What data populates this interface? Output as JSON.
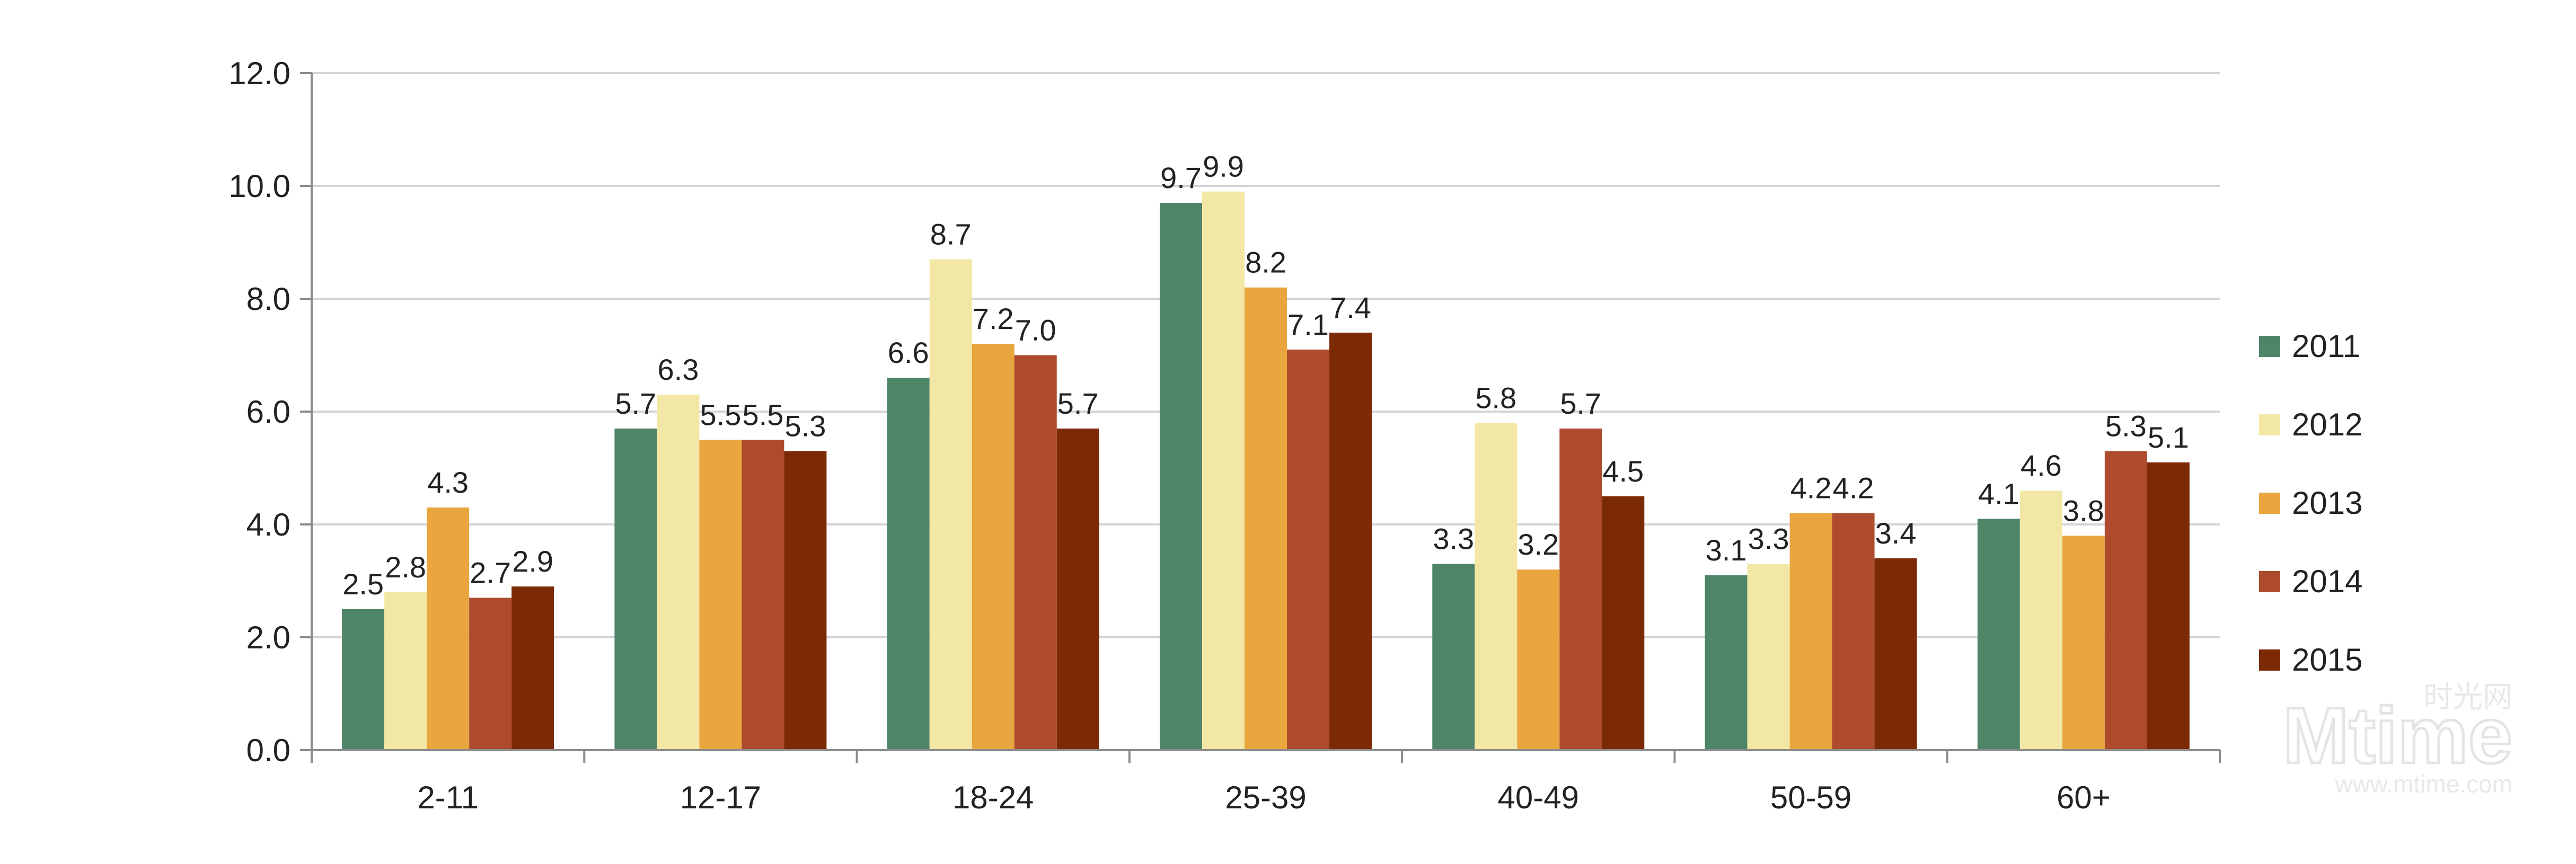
{
  "chart_data": {
    "type": "bar",
    "categories": [
      "2-11",
      "12-17",
      "18-24",
      "25-39",
      "40-49",
      "50-59",
      "60+"
    ],
    "series": [
      {
        "name": "2011",
        "color": "#4e8468",
        "values": [
          2.5,
          5.7,
          6.6,
          9.7,
          3.3,
          3.1,
          4.1
        ]
      },
      {
        "name": "2012",
        "color": "#f2e7a5",
        "values": [
          2.8,
          6.3,
          8.7,
          9.9,
          5.8,
          3.3,
          4.6
        ]
      },
      {
        "name": "2013",
        "color": "#e9a63f",
        "values": [
          4.3,
          5.5,
          7.2,
          8.2,
          3.2,
          4.2,
          3.8
        ]
      },
      {
        "name": "2014",
        "color": "#ad4b2c",
        "values": [
          2.7,
          5.5,
          7.0,
          7.1,
          5.7,
          4.2,
          5.3
        ]
      },
      {
        "name": "2015",
        "color": "#7c2a05",
        "values": [
          2.9,
          5.3,
          5.7,
          7.4,
          4.5,
          3.4,
          5.1
        ]
      }
    ],
    "yticks": [
      "0.0",
      "2.0",
      "4.0",
      "6.0",
      "8.0",
      "10.0",
      "12.0"
    ],
    "ylim": [
      0,
      12
    ],
    "grid": true,
    "legend_position": "right",
    "data_labels": true
  },
  "watermark": {
    "cn": "时光网",
    "logo": "Mtime",
    "url": "www.mtime.com"
  }
}
